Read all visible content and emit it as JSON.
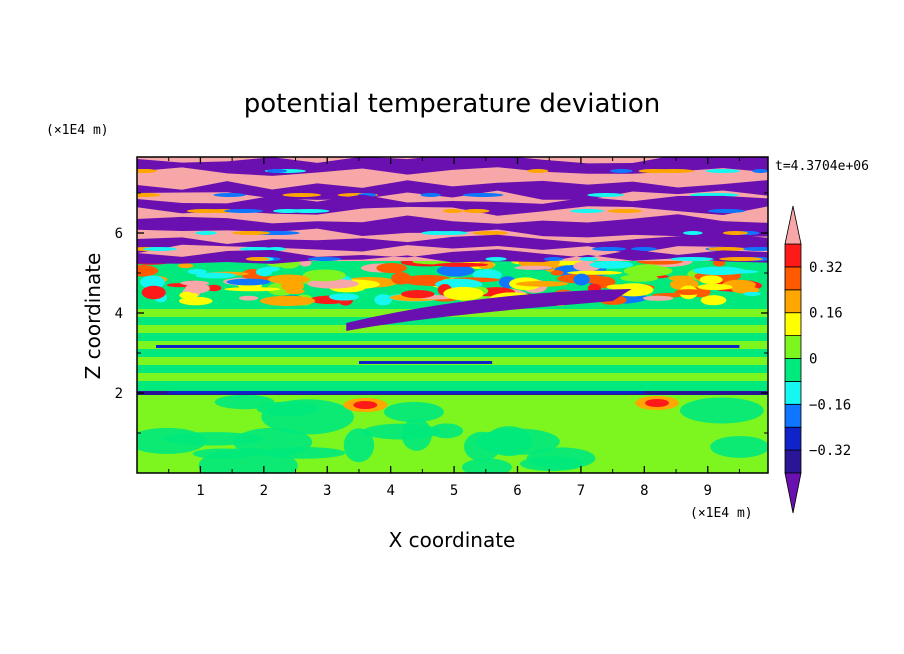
{
  "chart_data": {
    "type": "heatmap",
    "title": "potential temperature deviation",
    "xlabel": "X coordinate",
    "ylabel": "Z coordinate",
    "x_unit": "(×1E4 m)",
    "y_unit": "(×1E4 m)",
    "time_label": "t=4.3704e+06",
    "xlim": [
      0,
      9.95
    ],
    "ylim": [
      0,
      7.9
    ],
    "x_ticks": [
      1,
      2,
      3,
      4,
      5,
      6,
      7,
      8,
      9
    ],
    "y_ticks": [
      2,
      4,
      6
    ],
    "colorbar": {
      "levels": [
        -0.4,
        -0.32,
        -0.24,
        -0.16,
        -0.08,
        0,
        0.08,
        0.16,
        0.24,
        0.32,
        0.4
      ],
      "labels": [
        "0.32",
        "0.16",
        "0",
        "−0.16",
        "−0.32"
      ],
      "label_values": [
        0.32,
        0.16,
        0,
        -0.16,
        -0.32
      ],
      "colors": [
        "#6a0fb0",
        "#2a1596",
        "#1023c8",
        "#0f77ff",
        "#15f7f0",
        "#00e97c",
        "#7df51f",
        "#ffff00",
        "#ffa600",
        "#ff5a00",
        "#ff1a1a",
        "#f7a7a7"
      ],
      "extend": "both"
    },
    "layers": [
      {
        "z_range": [
          0,
          2.0
        ],
        "description_levels": [
          0,
          0.08
        ],
        "dominant": "light-green"
      },
      {
        "z_range": [
          2.0,
          4.3
        ],
        "dominant": "green-bands"
      },
      {
        "z_range": [
          4.3,
          5.3
        ],
        "dominant": "mixed"
      },
      {
        "z_range": [
          5.3,
          7.9
        ],
        "dominant": "purple-pink-bands"
      }
    ]
  }
}
